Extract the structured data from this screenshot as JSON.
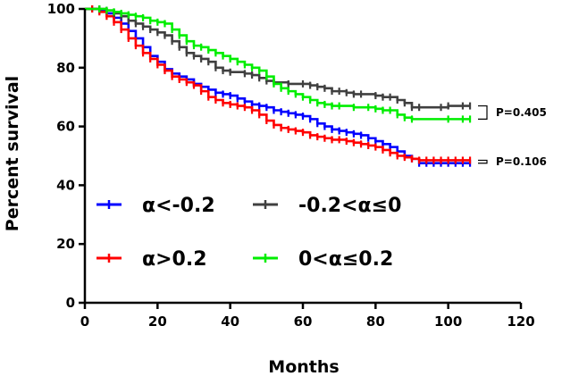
{
  "chart_data": {
    "type": "line",
    "subtype": "kaplan-meier",
    "xlabel": "Months",
    "ylabel": "Percent survival",
    "xlim": [
      0,
      120
    ],
    "ylim": [
      0,
      100
    ],
    "x_ticks": [
      "0",
      "20",
      "40",
      "60",
      "80",
      "100",
      "120"
    ],
    "y_ticks": [
      "0",
      "20",
      "40",
      "60",
      "80",
      "100"
    ],
    "series": [
      {
        "name": "α<-0.2",
        "color": "#0000ff",
        "points": [
          [
            0,
            100
          ],
          [
            2,
            100
          ],
          [
            4,
            99.5
          ],
          [
            6,
            98.5
          ],
          [
            8,
            97
          ],
          [
            10,
            95
          ],
          [
            12,
            92.5
          ],
          [
            14,
            90
          ],
          [
            16,
            87
          ],
          [
            18,
            84
          ],
          [
            20,
            82
          ],
          [
            22,
            79.5
          ],
          [
            24,
            78
          ],
          [
            26,
            77
          ],
          [
            28,
            76
          ],
          [
            30,
            74.5
          ],
          [
            32,
            73.5
          ],
          [
            34,
            72.5
          ],
          [
            36,
            71.5
          ],
          [
            38,
            71
          ],
          [
            40,
            70.5
          ],
          [
            42,
            69.5
          ],
          [
            44,
            68.5
          ],
          [
            46,
            67.5
          ],
          [
            48,
            67
          ],
          [
            50,
            66.5
          ],
          [
            52,
            65.5
          ],
          [
            54,
            65
          ],
          [
            56,
            64.5
          ],
          [
            58,
            64
          ],
          [
            60,
            63.5
          ],
          [
            62,
            62.5
          ],
          [
            64,
            61
          ],
          [
            66,
            60
          ],
          [
            68,
            59
          ],
          [
            70,
            58.5
          ],
          [
            72,
            58
          ],
          [
            74,
            57.5
          ],
          [
            76,
            57
          ],
          [
            78,
            56
          ],
          [
            80,
            55
          ],
          [
            82,
            54
          ],
          [
            84,
            53
          ],
          [
            86,
            51.5
          ],
          [
            88,
            50
          ],
          [
            90,
            49
          ],
          [
            92,
            47.5
          ],
          [
            94,
            47.5
          ],
          [
            96,
            47.5
          ],
          [
            98,
            47.5
          ],
          [
            100,
            47.5
          ],
          [
            102,
            47.5
          ],
          [
            104,
            47.5
          ],
          [
            106,
            47.5
          ]
        ]
      },
      {
        "name": "α>0.2",
        "color": "#ff0000",
        "points": [
          [
            0,
            100
          ],
          [
            2,
            100
          ],
          [
            4,
            99
          ],
          [
            6,
            97.5
          ],
          [
            8,
            95.5
          ],
          [
            10,
            93
          ],
          [
            12,
            90
          ],
          [
            14,
            87.5
          ],
          [
            16,
            85
          ],
          [
            18,
            83
          ],
          [
            20,
            81
          ],
          [
            22,
            79
          ],
          [
            24,
            77
          ],
          [
            26,
            76
          ],
          [
            28,
            75
          ],
          [
            30,
            74
          ],
          [
            32,
            72
          ],
          [
            34,
            70
          ],
          [
            36,
            69
          ],
          [
            38,
            68
          ],
          [
            40,
            67.5
          ],
          [
            42,
            67
          ],
          [
            44,
            66.5
          ],
          [
            46,
            65.5
          ],
          [
            48,
            64
          ],
          [
            50,
            62
          ],
          [
            52,
            60.5
          ],
          [
            54,
            59.5
          ],
          [
            56,
            59
          ],
          [
            58,
            58.5
          ],
          [
            60,
            58
          ],
          [
            62,
            57
          ],
          [
            64,
            56.5
          ],
          [
            66,
            56
          ],
          [
            68,
            55.5
          ],
          [
            70,
            55.5
          ],
          [
            72,
            55
          ],
          [
            74,
            54.5
          ],
          [
            76,
            54
          ],
          [
            78,
            53.5
          ],
          [
            80,
            53
          ],
          [
            82,
            52
          ],
          [
            84,
            51
          ],
          [
            86,
            50
          ],
          [
            88,
            49.5
          ],
          [
            90,
            49
          ],
          [
            92,
            48.5
          ],
          [
            94,
            48.5
          ],
          [
            96,
            48.5
          ],
          [
            98,
            48.5
          ],
          [
            100,
            48.5
          ],
          [
            102,
            48.5
          ],
          [
            104,
            48.5
          ],
          [
            106,
            48.5
          ]
        ]
      },
      {
        "name": "-0.2<α≤0",
        "color": "#404040",
        "points": [
          [
            0,
            100
          ],
          [
            4,
            100
          ],
          [
            6,
            99.5
          ],
          [
            8,
            98.5
          ],
          [
            10,
            97.5
          ],
          [
            12,
            96
          ],
          [
            14,
            95
          ],
          [
            16,
            94
          ],
          [
            18,
            93
          ],
          [
            20,
            92
          ],
          [
            22,
            91
          ],
          [
            24,
            89
          ],
          [
            26,
            87
          ],
          [
            28,
            85
          ],
          [
            30,
            84
          ],
          [
            32,
            83
          ],
          [
            34,
            82
          ],
          [
            36,
            80
          ],
          [
            38,
            79
          ],
          [
            40,
            78.5
          ],
          [
            44,
            78
          ],
          [
            46,
            77.5
          ],
          [
            48,
            76.5
          ],
          [
            50,
            75.5
          ],
          [
            52,
            75
          ],
          [
            56,
            74.5
          ],
          [
            60,
            74.5
          ],
          [
            62,
            74
          ],
          [
            64,
            73.5
          ],
          [
            66,
            73
          ],
          [
            68,
            72
          ],
          [
            70,
            72
          ],
          [
            72,
            71.5
          ],
          [
            74,
            71
          ],
          [
            76,
            71
          ],
          [
            80,
            70.5
          ],
          [
            82,
            70
          ],
          [
            84,
            70
          ],
          [
            86,
            69
          ],
          [
            88,
            68
          ],
          [
            90,
            66.5
          ],
          [
            92,
            66.5
          ],
          [
            98,
            66.5
          ],
          [
            100,
            67
          ],
          [
            104,
            67
          ],
          [
            106,
            67
          ]
        ]
      },
      {
        "name": "0<α≤0.2",
        "color": "#00ee00",
        "points": [
          [
            0,
            100
          ],
          [
            4,
            100
          ],
          [
            6,
            99.5
          ],
          [
            8,
            99
          ],
          [
            10,
            98.5
          ],
          [
            12,
            98
          ],
          [
            14,
            97.5
          ],
          [
            16,
            97
          ],
          [
            18,
            96
          ],
          [
            20,
            95.5
          ],
          [
            22,
            95
          ],
          [
            24,
            93
          ],
          [
            26,
            91
          ],
          [
            28,
            89
          ],
          [
            30,
            87.5
          ],
          [
            32,
            87
          ],
          [
            34,
            86
          ],
          [
            36,
            85
          ],
          [
            38,
            84
          ],
          [
            40,
            83
          ],
          [
            42,
            82
          ],
          [
            44,
            81
          ],
          [
            46,
            80
          ],
          [
            48,
            79
          ],
          [
            50,
            77
          ],
          [
            52,
            74.5
          ],
          [
            54,
            73
          ],
          [
            56,
            72
          ],
          [
            58,
            71
          ],
          [
            60,
            70
          ],
          [
            62,
            69
          ],
          [
            64,
            68
          ],
          [
            66,
            67.5
          ],
          [
            68,
            67
          ],
          [
            70,
            67
          ],
          [
            74,
            66.5
          ],
          [
            78,
            66.5
          ],
          [
            80,
            66
          ],
          [
            82,
            65.5
          ],
          [
            84,
            65.5
          ],
          [
            86,
            64
          ],
          [
            88,
            63
          ],
          [
            90,
            62.5
          ],
          [
            100,
            62.5
          ],
          [
            104,
            62.5
          ],
          [
            106,
            62.5
          ]
        ]
      }
    ],
    "annotations": [
      {
        "label": "P=0.405",
        "y_range": [
          62.5,
          67
        ]
      },
      {
        "label": "P=0.106",
        "y_range": [
          47.5,
          48.5
        ]
      }
    ],
    "legend": {
      "placement": "lower-left",
      "columns": 2
    }
  }
}
